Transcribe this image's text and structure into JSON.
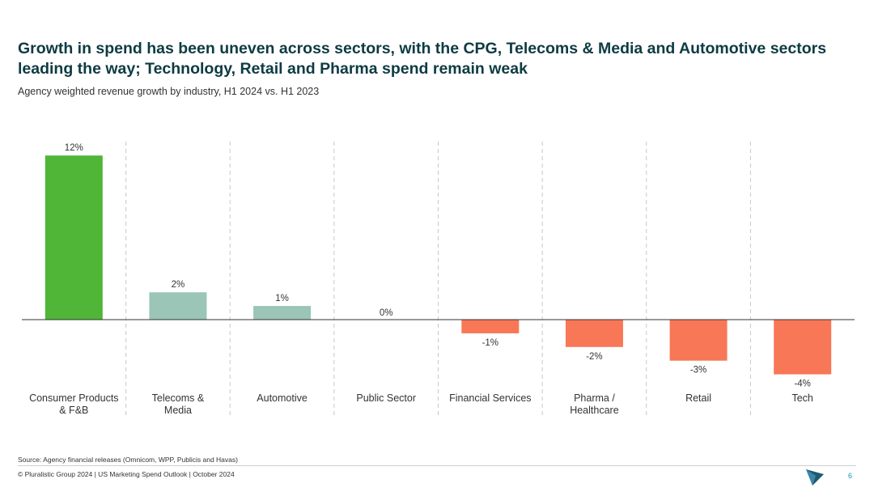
{
  "header": {
    "title": "Growth in spend has been uneven across sectors, with the CPG, Telecoms & Media and Automotive sectors leading the way; Technology, Retail and Pharma spend remain weak",
    "subtitle": "Agency weighted revenue growth by industry, H1 2024 vs. H1 2023"
  },
  "chart_data": {
    "type": "bar",
    "categories": [
      [
        "Consumer Products",
        "& F&B"
      ],
      [
        "Telecoms &",
        "Media"
      ],
      [
        "Automotive"
      ],
      [
        "Public Sector"
      ],
      [
        "Financial Services"
      ],
      [
        "Pharma /",
        "Healthcare"
      ],
      [
        "Retail"
      ],
      [
        "Tech"
      ]
    ],
    "values": [
      12,
      2,
      1,
      0,
      -1,
      -2,
      -3,
      -4
    ],
    "data_labels": [
      "12%",
      "2%",
      "1%",
      "0%",
      "-1%",
      "-2%",
      "-3%",
      "-4%"
    ],
    "bar_colors": [
      "#4fb638",
      "#9ac5b7",
      "#9ac5b7",
      "#9ac5b7",
      "#f87756",
      "#f87756",
      "#f87756",
      "#f87756"
    ],
    "ylim": [
      -4,
      12
    ],
    "grid": false,
    "category_separators": "dashed"
  },
  "footer": {
    "source": "Source: Agency financial releases (Omnicom, WPP, Publicis and Havas)",
    "copyright": "© Pluralistic Group 2024 | US Marketing Spend Outlook | October 2024",
    "page_number": "6"
  },
  "colors": {
    "title": "#0e3b43",
    "positive_top": "#4fb638",
    "positive": "#9ac5b7",
    "negative": "#f87756",
    "logo": "#1f5a72"
  },
  "icons": {
    "logo": "triangle-logo-icon"
  }
}
